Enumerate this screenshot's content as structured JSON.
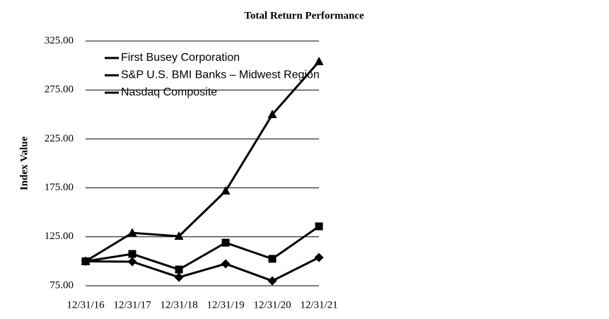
{
  "chart_data": {
    "type": "line",
    "title": "Total Return Performance",
    "y_label": "Index Value",
    "categories": [
      "12/31/16",
      "12/31/17",
      "12/31/18",
      "12/31/19",
      "12/31/20",
      "12/31/21"
    ],
    "series": [
      {
        "name": "First Busey Corporation",
        "color": "#000000",
        "marker": "square",
        "values": [
          100,
          107.5,
          91.6,
          119,
          102.5,
          135.7
        ]
      },
      {
        "name": "S&P U.S. BMI Banks – Midwest Region",
        "color": "#000000",
        "marker": "diamond",
        "values": [
          100,
          99.6,
          83.7,
          97.4,
          80,
          103.9
        ]
      },
      {
        "name": "Nasdaq Composite",
        "color": "#000000",
        "marker": "triangle",
        "values": [
          100,
          129,
          125.6,
          171.8,
          249.9,
          304
        ]
      }
    ],
    "ylim": [
      75,
      325
    ],
    "yticks": [
      {
        "value": 75,
        "label": "75.00"
      },
      {
        "value": 125,
        "label": "125.00"
      },
      {
        "value": 175,
        "label": "175.00"
      },
      {
        "value": 225,
        "label": "225.00"
      },
      {
        "value": 275,
        "label": "275.00"
      },
      {
        "value": 325,
        "label": "325.00"
      }
    ],
    "grid": true,
    "legend": "top-left"
  }
}
